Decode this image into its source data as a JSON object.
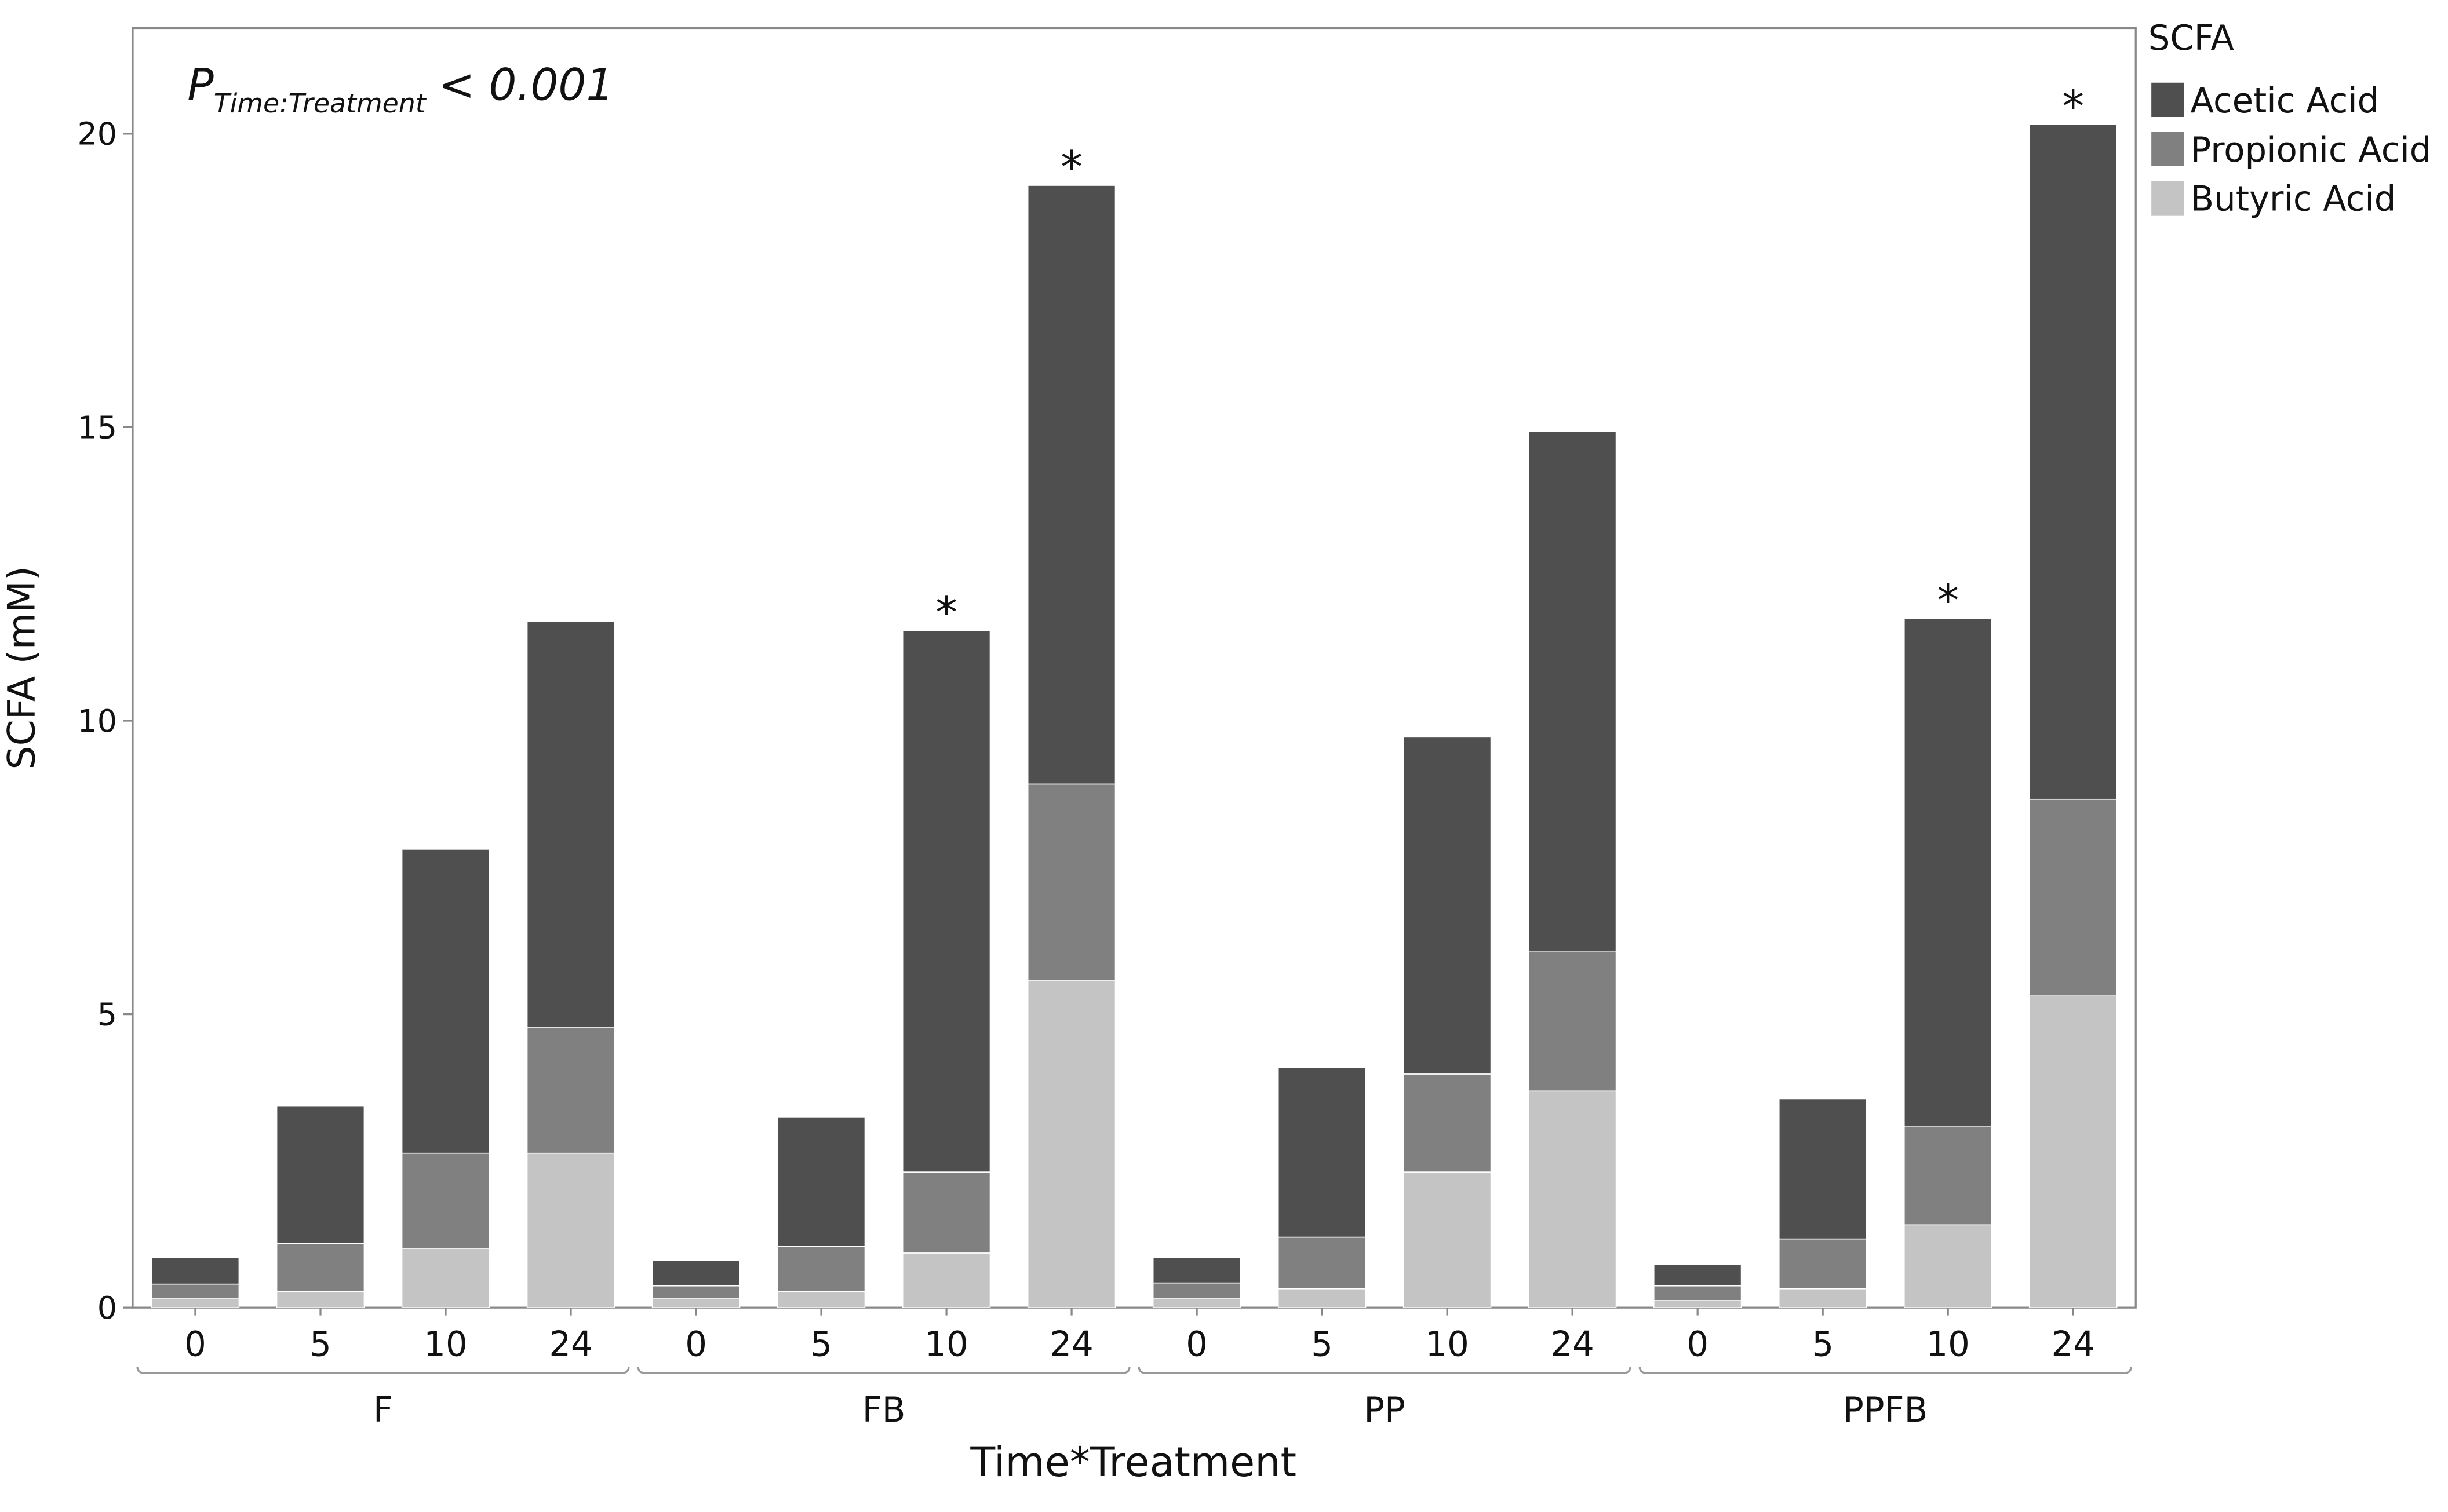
{
  "chart_data": {
    "type": "stacked_bar",
    "y_label": "SCFA (mM)",
    "x_label": "Time*Treatment",
    "annotation": {
      "symbol": "P",
      "subscript": "Time:Treatment",
      "text": "< 0.001"
    },
    "legend_title": "SCFA",
    "legend": "outside-top-right",
    "categories": [
      "0",
      "5",
      "10",
      "24",
      "0",
      "5",
      "10",
      "24",
      "0",
      "5",
      "10",
      "24",
      "0",
      "5",
      "10",
      "24"
    ],
    "groups": [
      "F",
      "FB",
      "PP",
      "PPFB"
    ],
    "significance": [
      null,
      null,
      null,
      null,
      null,
      null,
      "*",
      "*",
      null,
      null,
      null,
      null,
      null,
      null,
      "*",
      "*"
    ],
    "series": [
      {
        "name": "Acetic Acid",
        "color": "#4f4f4f",
        "values": [
          0.45,
          2.34,
          5.18,
          6.91,
          0.43,
          2.2,
          9.22,
          10.2,
          0.43,
          2.89,
          5.74,
          8.87,
          0.37,
          2.39,
          8.66,
          11.5
        ]
      },
      {
        "name": "Propionic Acid",
        "color": "#808080",
        "values": [
          0.25,
          0.82,
          1.62,
          2.15,
          0.22,
          0.77,
          1.38,
          3.34,
          0.27,
          0.88,
          1.67,
          2.37,
          0.25,
          0.85,
          1.67,
          3.35
        ]
      },
      {
        "name": "Butyric Acid",
        "color": "#c4c4c4",
        "values": [
          0.15,
          0.27,
          1.01,
          2.63,
          0.15,
          0.27,
          0.93,
          5.58,
          0.15,
          0.32,
          2.31,
          3.69,
          0.12,
          0.32,
          1.41,
          5.31
        ]
      }
    ],
    "ylim": [
      0,
      21.8
    ],
    "yticks": [
      0,
      5,
      10,
      15,
      20
    ]
  }
}
